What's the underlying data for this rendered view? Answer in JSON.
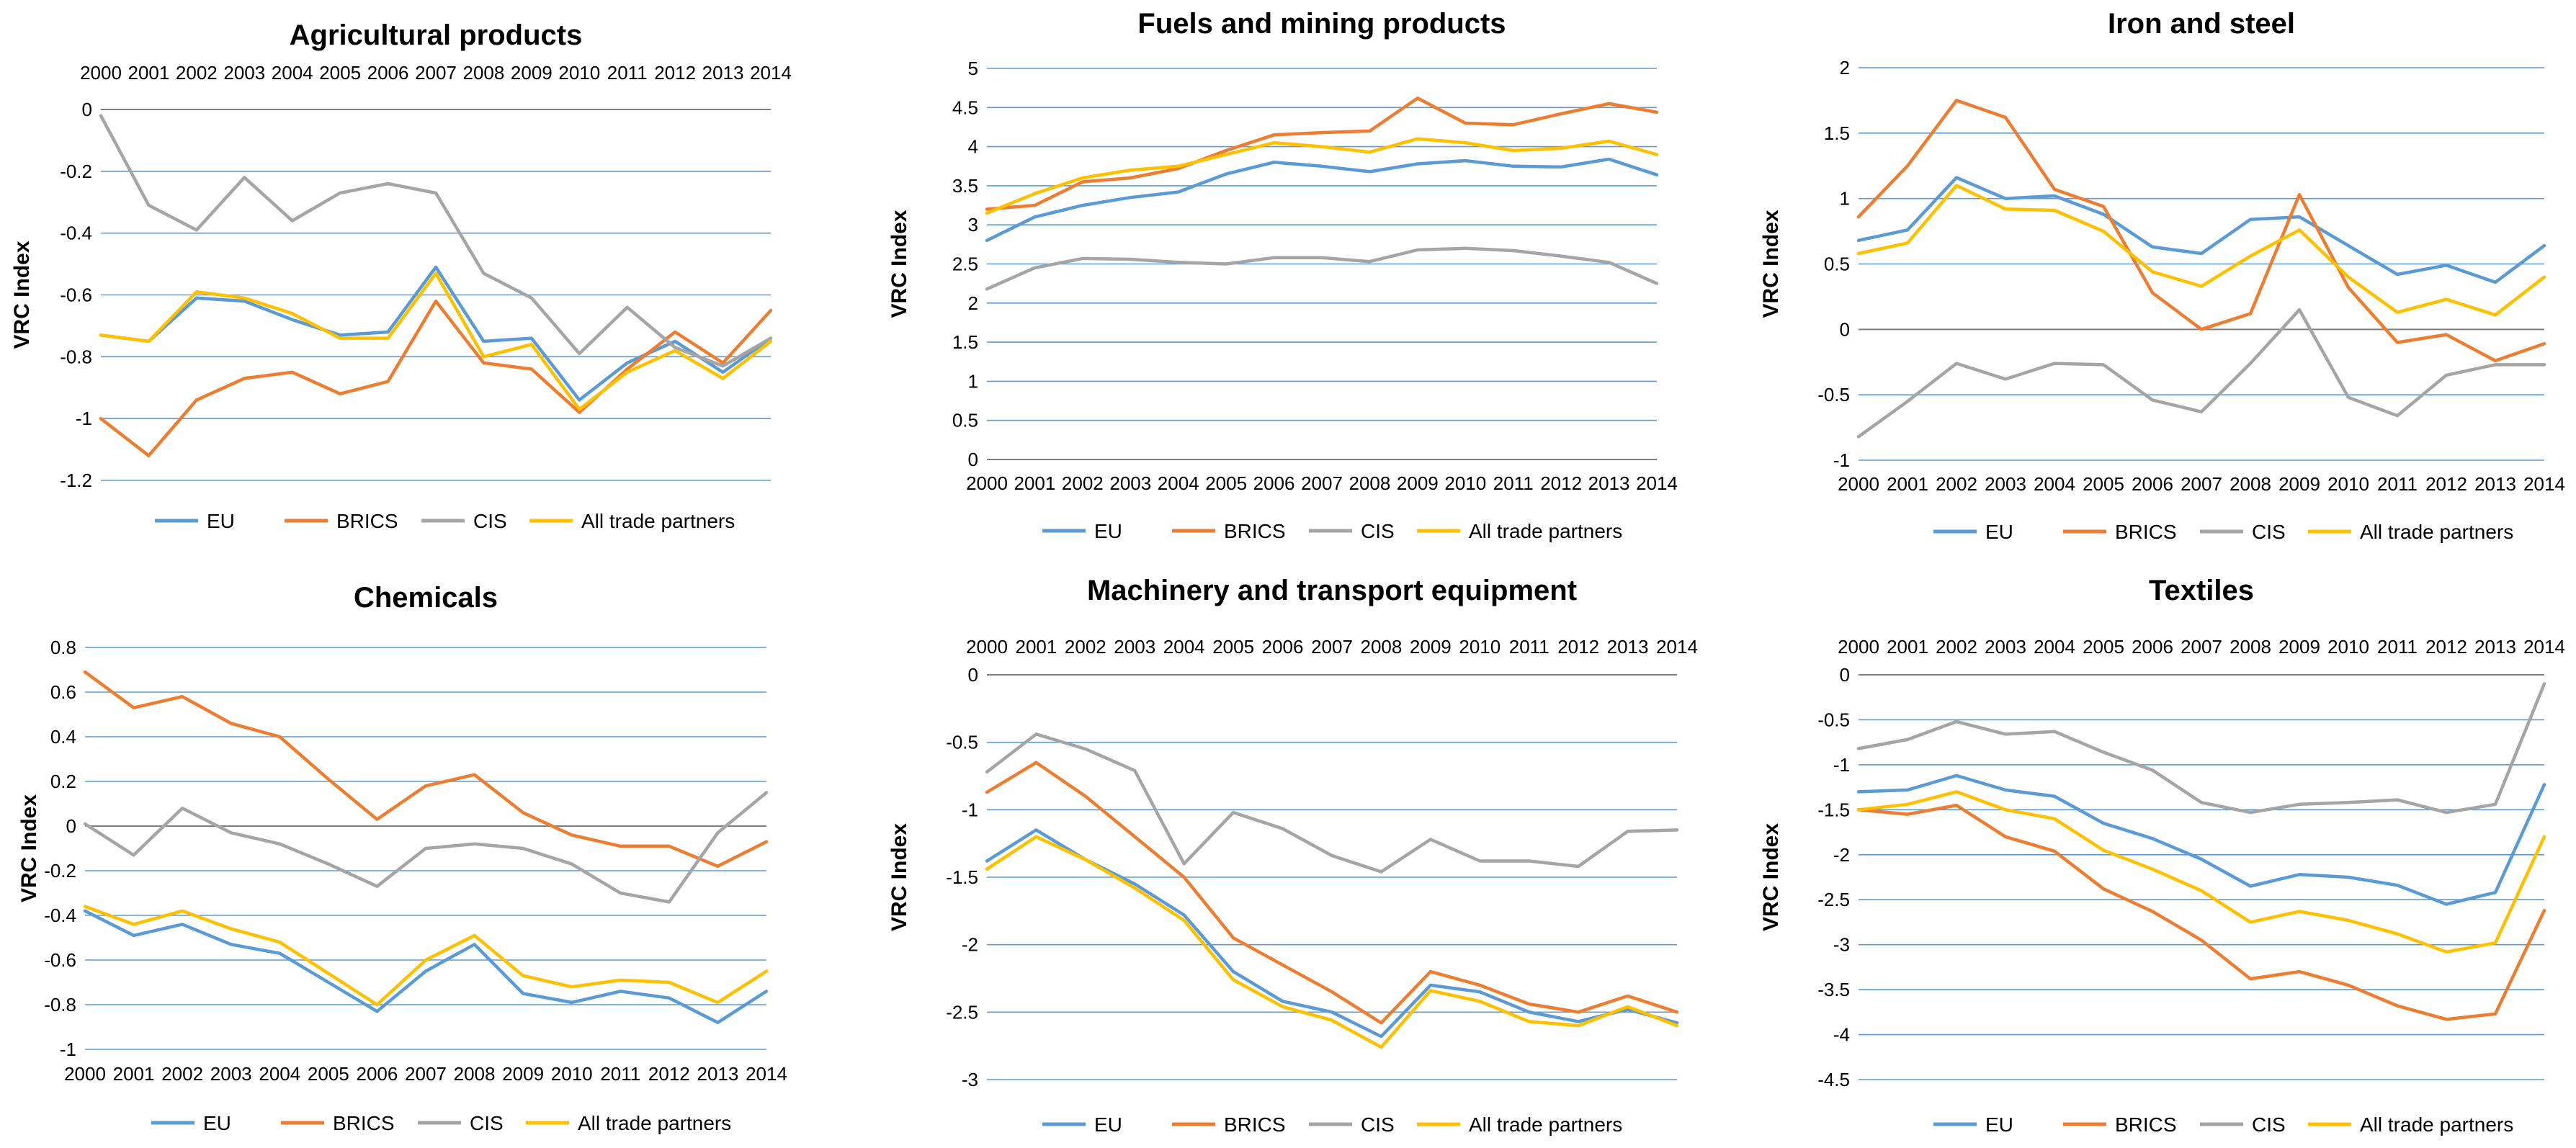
{
  "chart_data": [
    {
      "type": "line",
      "title": "Agricultural products",
      "xlabel": "",
      "ylabel": "VRC Index",
      "x_axis_position": "top",
      "grid": true,
      "legend_position": "bottom",
      "ylim": [
        -1.2,
        0
      ],
      "y_ticks": [
        "0",
        "-0.2",
        "-0.4",
        "-0.6",
        "-0.8",
        "-1",
        "-1.2"
      ],
      "categories": [
        "2000",
        "2001",
        "2002",
        "2003",
        "2004",
        "2005",
        "2006",
        "2007",
        "2008",
        "2009",
        "2010",
        "2011",
        "2012",
        "2013",
        "2014"
      ],
      "series": [
        {
          "name": "EU",
          "color": "#5B9BD5",
          "values": [
            -0.73,
            -0.75,
            -0.61,
            -0.62,
            -0.68,
            -0.73,
            -0.72,
            -0.51,
            -0.75,
            -0.74,
            -0.94,
            -0.82,
            -0.75,
            -0.85,
            -0.74
          ]
        },
        {
          "name": "BRICS",
          "color": "#ED7D31",
          "values": [
            -1.0,
            -1.12,
            -0.94,
            -0.87,
            -0.85,
            -0.92,
            -0.88,
            -0.62,
            -0.82,
            -0.84,
            -0.98,
            -0.84,
            -0.72,
            -0.82,
            -0.65
          ]
        },
        {
          "name": "CIS",
          "color": "#A5A5A5",
          "values": [
            -0.02,
            -0.31,
            -0.39,
            -0.22,
            -0.36,
            -0.27,
            -0.24,
            -0.27,
            -0.53,
            -0.61,
            -0.79,
            -0.64,
            -0.77,
            -0.83,
            -0.74
          ]
        },
        {
          "name": "All trade partners",
          "color": "#FFC000",
          "values": [
            -0.73,
            -0.75,
            -0.59,
            -0.61,
            -0.66,
            -0.74,
            -0.74,
            -0.53,
            -0.8,
            -0.76,
            -0.97,
            -0.85,
            -0.78,
            -0.87,
            -0.75
          ]
        }
      ]
    },
    {
      "type": "line",
      "title": "Fuels and mining products",
      "xlabel": "",
      "ylabel": "VRC Index",
      "x_axis_position": "bottom",
      "grid": true,
      "legend_position": "bottom",
      "ylim": [
        0,
        5
      ],
      "y_ticks": [
        "5",
        "4.5",
        "4",
        "3.5",
        "3",
        "2.5",
        "2",
        "1.5",
        "1",
        "0.5",
        "0"
      ],
      "categories": [
        "2000",
        "2001",
        "2002",
        "2003",
        "2004",
        "2005",
        "2006",
        "2007",
        "2008",
        "2009",
        "2010",
        "2011",
        "2012",
        "2013",
        "2014"
      ],
      "series": [
        {
          "name": "EU",
          "color": "#5B9BD5",
          "values": [
            2.8,
            3.1,
            3.25,
            3.35,
            3.42,
            3.65,
            3.8,
            3.75,
            3.68,
            3.78,
            3.82,
            3.75,
            3.74,
            3.84,
            3.64
          ]
        },
        {
          "name": "BRICS",
          "color": "#ED7D31",
          "values": [
            3.2,
            3.25,
            3.55,
            3.6,
            3.72,
            3.95,
            4.15,
            4.18,
            4.2,
            4.62,
            4.3,
            4.28,
            4.42,
            4.55,
            4.44
          ]
        },
        {
          "name": "CIS",
          "color": "#A5A5A5",
          "values": [
            2.18,
            2.45,
            2.57,
            2.56,
            2.52,
            2.5,
            2.58,
            2.58,
            2.53,
            2.68,
            2.7,
            2.67,
            2.6,
            2.52,
            2.25
          ]
        },
        {
          "name": "All trade partners",
          "color": "#FFC000",
          "values": [
            3.15,
            3.4,
            3.6,
            3.7,
            3.75,
            3.9,
            4.05,
            4.0,
            3.93,
            4.1,
            4.05,
            3.95,
            3.98,
            4.07,
            3.9
          ]
        }
      ]
    },
    {
      "type": "line",
      "title": "Iron and steel",
      "xlabel": "",
      "ylabel": "VRC Index",
      "x_axis_position": "bottom",
      "grid": true,
      "legend_position": "bottom",
      "ylim": [
        -1,
        2
      ],
      "y_ticks": [
        "2",
        "1.5",
        "1",
        "0.5",
        "0",
        "-0.5",
        "-1"
      ],
      "categories": [
        "2000",
        "2001",
        "2002",
        "2003",
        "2004",
        "2005",
        "2006",
        "2007",
        "2008",
        "2009",
        "2010",
        "2011",
        "2012",
        "2013",
        "2014"
      ],
      "series": [
        {
          "name": "EU",
          "color": "#5B9BD5",
          "values": [
            0.68,
            0.76,
            1.16,
            1.0,
            1.02,
            0.88,
            0.63,
            0.58,
            0.84,
            0.86,
            0.64,
            0.42,
            0.49,
            0.36,
            0.64
          ]
        },
        {
          "name": "BRICS",
          "color": "#ED7D31",
          "values": [
            0.86,
            1.25,
            1.75,
            1.62,
            1.07,
            0.94,
            0.28,
            0.0,
            0.12,
            1.03,
            0.32,
            -0.1,
            -0.04,
            -0.24,
            -0.11
          ]
        },
        {
          "name": "CIS",
          "color": "#A5A5A5",
          "values": [
            -0.82,
            -0.55,
            -0.26,
            -0.38,
            -0.26,
            -0.27,
            -0.54,
            -0.63,
            -0.26,
            0.15,
            -0.52,
            -0.66,
            -0.35,
            -0.27,
            -0.27
          ]
        },
        {
          "name": "All trade partners",
          "color": "#FFC000",
          "values": [
            0.58,
            0.66,
            1.1,
            0.92,
            0.91,
            0.75,
            0.44,
            0.33,
            0.56,
            0.76,
            0.4,
            0.13,
            0.23,
            0.11,
            0.4
          ]
        }
      ]
    },
    {
      "type": "line",
      "title": "Chemicals",
      "xlabel": "",
      "ylabel": "VRC Index",
      "x_axis_position": "bottom",
      "grid": true,
      "legend_position": "bottom",
      "ylim": [
        -1,
        0.8
      ],
      "y_ticks": [
        "0.8",
        "0.6",
        "0.4",
        "0.2",
        "0",
        "-0.2",
        "-0.4",
        "-0.6",
        "-0.8",
        "-1"
      ],
      "categories": [
        "2000",
        "2001",
        "2002",
        "2003",
        "2004",
        "2005",
        "2006",
        "2007",
        "2008",
        "2009",
        "2010",
        "2011",
        "2012",
        "2013",
        "2014"
      ],
      "series": [
        {
          "name": "EU",
          "color": "#5B9BD5",
          "values": [
            -0.38,
            -0.49,
            -0.44,
            -0.53,
            -0.57,
            -0.7,
            -0.83,
            -0.65,
            -0.53,
            -0.75,
            -0.79,
            -0.74,
            -0.77,
            -0.88,
            -0.74
          ]
        },
        {
          "name": "BRICS",
          "color": "#ED7D31",
          "values": [
            0.69,
            0.53,
            0.58,
            0.46,
            0.4,
            0.21,
            0.03,
            0.18,
            0.23,
            0.06,
            -0.04,
            -0.09,
            -0.09,
            -0.18,
            -0.07
          ]
        },
        {
          "name": "CIS",
          "color": "#A5A5A5",
          "values": [
            0.01,
            -0.13,
            0.08,
            -0.03,
            -0.08,
            -0.17,
            -0.27,
            -0.1,
            -0.08,
            -0.1,
            -0.17,
            -0.3,
            -0.34,
            -0.03,
            0.15
          ]
        },
        {
          "name": "All trade partners",
          "color": "#FFC000",
          "values": [
            -0.36,
            -0.44,
            -0.38,
            -0.46,
            -0.52,
            -0.66,
            -0.8,
            -0.6,
            -0.49,
            -0.67,
            -0.72,
            -0.69,
            -0.7,
            -0.79,
            -0.65
          ]
        }
      ]
    },
    {
      "type": "line",
      "title": "Machinery and transport equipment",
      "xlabel": "",
      "ylabel": "VRC Index",
      "x_axis_position": "top",
      "grid": true,
      "legend_position": "bottom",
      "ylim": [
        -3,
        0
      ],
      "y_ticks": [
        "0",
        "-0.5",
        "-1",
        "-1.5",
        "-2",
        "-2.5",
        "-3"
      ],
      "categories": [
        "2000",
        "2001",
        "2002",
        "2003",
        "2004",
        "2005",
        "2006",
        "2007",
        "2008",
        "2009",
        "2010",
        "2011",
        "2012",
        "2013",
        "2014"
      ],
      "series": [
        {
          "name": "EU",
          "color": "#5B9BD5",
          "values": [
            -1.38,
            -1.15,
            -1.37,
            -1.55,
            -1.78,
            -2.2,
            -2.42,
            -2.5,
            -2.68,
            -2.3,
            -2.35,
            -2.5,
            -2.57,
            -2.48,
            -2.58
          ]
        },
        {
          "name": "BRICS",
          "color": "#ED7D31",
          "values": [
            -0.87,
            -0.65,
            -0.9,
            -1.2,
            -1.5,
            -1.95,
            -2.15,
            -2.35,
            -2.58,
            -2.2,
            -2.3,
            -2.44,
            -2.5,
            -2.38,
            -2.5
          ]
        },
        {
          "name": "CIS",
          "color": "#A5A5A5",
          "values": [
            -0.72,
            -0.44,
            -0.55,
            -0.71,
            -1.4,
            -1.02,
            -1.14,
            -1.34,
            -1.46,
            -1.22,
            -1.38,
            -1.38,
            -1.42,
            -1.16,
            -1.15
          ]
        },
        {
          "name": "All trade partners",
          "color": "#FFC000",
          "values": [
            -1.44,
            -1.2,
            -1.37,
            -1.58,
            -1.82,
            -2.26,
            -2.46,
            -2.56,
            -2.76,
            -2.34,
            -2.42,
            -2.57,
            -2.6,
            -2.46,
            -2.6
          ]
        }
      ]
    },
    {
      "type": "line",
      "title": "Textiles",
      "xlabel": "",
      "ylabel": "VRC Index",
      "x_axis_position": "top",
      "grid": true,
      "legend_position": "bottom",
      "ylim": [
        -4.5,
        0
      ],
      "y_ticks": [
        "0",
        "-0.5",
        "-1",
        "-1.5",
        "-2",
        "-2.5",
        "-3",
        "-3.5",
        "-4",
        "-4.5"
      ],
      "categories": [
        "2000",
        "2001",
        "2002",
        "2003",
        "2004",
        "2005",
        "2006",
        "2007",
        "2008",
        "2009",
        "2010",
        "2011",
        "2012",
        "2013",
        "2014"
      ],
      "series": [
        {
          "name": "EU",
          "color": "#5B9BD5",
          "values": [
            -1.3,
            -1.28,
            -1.12,
            -1.28,
            -1.35,
            -1.65,
            -1.82,
            -2.05,
            -2.35,
            -2.22,
            -2.25,
            -2.34,
            -2.55,
            -2.42,
            -1.22
          ]
        },
        {
          "name": "BRICS",
          "color": "#ED7D31",
          "values": [
            -1.5,
            -1.55,
            -1.45,
            -1.8,
            -1.96,
            -2.38,
            -2.63,
            -2.95,
            -3.38,
            -3.3,
            -3.45,
            -3.68,
            -3.83,
            -3.77,
            -2.62
          ]
        },
        {
          "name": "CIS",
          "color": "#A5A5A5",
          "values": [
            -0.82,
            -0.72,
            -0.52,
            -0.66,
            -0.63,
            -0.86,
            -1.06,
            -1.42,
            -1.53,
            -1.44,
            -1.42,
            -1.39,
            -1.53,
            -1.44,
            -0.1
          ]
        },
        {
          "name": "All trade partners",
          "color": "#FFC000",
          "values": [
            -1.5,
            -1.44,
            -1.3,
            -1.5,
            -1.6,
            -1.95,
            -2.16,
            -2.4,
            -2.75,
            -2.63,
            -2.73,
            -2.88,
            -3.08,
            -2.98,
            -1.8
          ]
        }
      ]
    }
  ]
}
